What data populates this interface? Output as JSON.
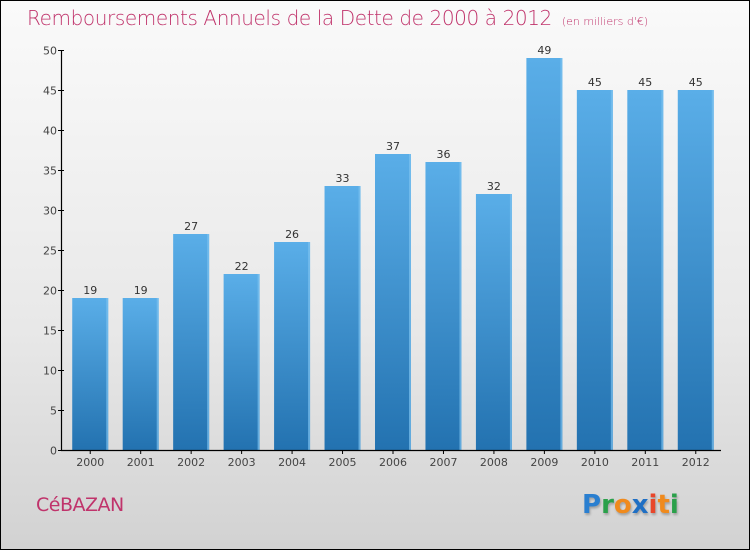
{
  "header": {
    "title": "Remboursements Annuels de la Dette de 2000 à 2012",
    "unit": "(en milliers d'€)"
  },
  "footer": {
    "commune": "CéBAZAN",
    "brand_letters": [
      {
        "char": "P",
        "color": "#2a7fd0"
      },
      {
        "char": "r",
        "color": "#2aa04a"
      },
      {
        "char": "o",
        "color": "#f08a1c"
      },
      {
        "char": "x",
        "color": "#1f6fc4"
      },
      {
        "char": "i",
        "color": "#e8462a"
      },
      {
        "char": "t",
        "color": "#f08a1c"
      },
      {
        "char": "i",
        "color": "#2aa04a"
      }
    ]
  },
  "colors": {
    "title": "#c0336b",
    "bar_top": "#5aaee8",
    "bar_bottom": "#2372b0",
    "axis": "#000000"
  },
  "chart_data": {
    "type": "bar",
    "title": "Remboursements Annuels de la Dette de 2000 à 2012",
    "subtitle": "(en milliers d'€)",
    "xlabel": "",
    "ylabel": "",
    "categories": [
      "2000",
      "2001",
      "2002",
      "2003",
      "2004",
      "2005",
      "2006",
      "2007",
      "2008",
      "2009",
      "2010",
      "2011",
      "2012"
    ],
    "values": [
      19,
      19,
      27,
      22,
      26,
      33,
      37,
      36,
      32,
      49,
      45,
      45,
      45
    ],
    "ylim": [
      0,
      50
    ],
    "yticks": [
      0,
      5,
      10,
      15,
      20,
      25,
      30,
      35,
      40,
      45,
      50
    ],
    "grid": false,
    "data_labels": true,
    "legend": "none"
  }
}
